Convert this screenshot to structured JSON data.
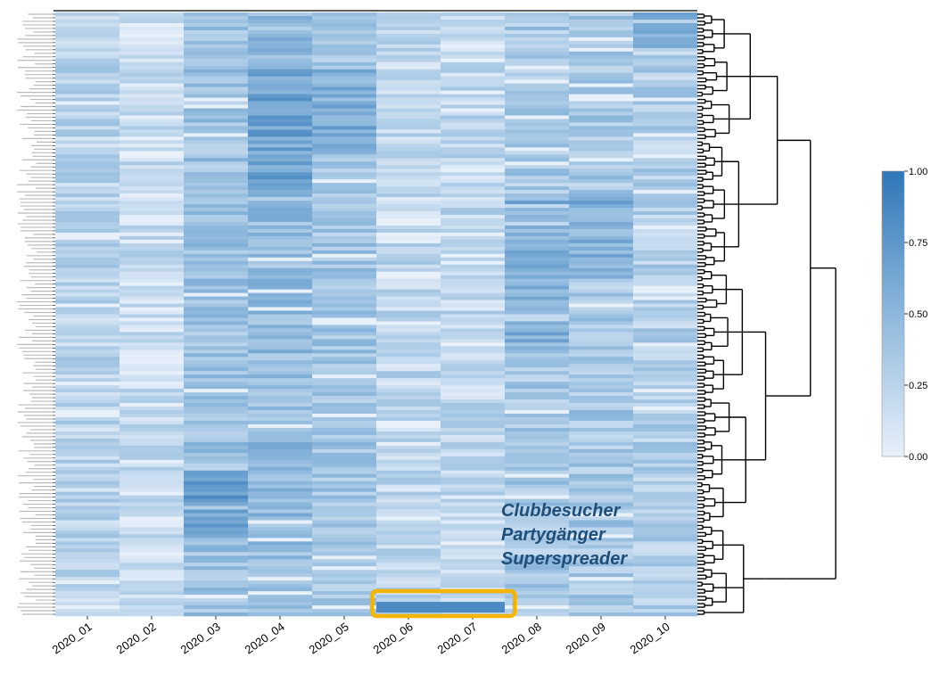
{
  "chart_data": {
    "type": "heatmap",
    "title": "",
    "xlabel": "",
    "ylabel": "",
    "columns": [
      "2020_01",
      "2020_02",
      "2020_03",
      "2020_04",
      "2020_05",
      "2020_06",
      "2020_07",
      "2020_08",
      "2020_09",
      "2020_10"
    ],
    "row_count": 170,
    "value_range": [
      0.0,
      1.0
    ],
    "colorbar": {
      "ticks": [
        "0.00",
        "0.25",
        "0.50",
        "0.75",
        "1.00"
      ],
      "color_low": "#e8f0fa",
      "color_high": "#2f76b8"
    },
    "highlighted_cells": {
      "columns": [
        "2020_06",
        "2020_07"
      ],
      "row_position": "bottom",
      "highlight_color": "#f5b400",
      "cluster_terms": [
        "Clubbesucher",
        "Partygänger",
        "Superspreader"
      ]
    },
    "dendrogram": "right",
    "annotations": [
      "Clubbesucher",
      "Partygänger",
      "Superspreader"
    ]
  },
  "annotation": {
    "line1": "Clubbesucher",
    "line2": "Partygänger",
    "line3": "Superspreader"
  }
}
